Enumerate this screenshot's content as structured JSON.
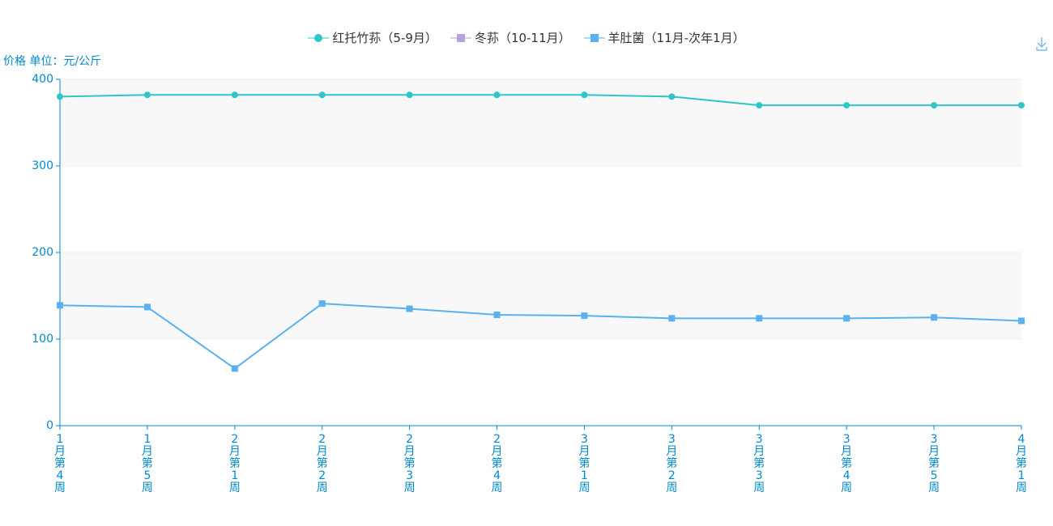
{
  "chart_data": {
    "type": "line",
    "y_axis_name": "价格 单位：元/公斤",
    "categories": [
      "1月第4周",
      "1月第5周",
      "2月第1周",
      "2月第2周",
      "2月第3周",
      "2月第4周",
      "3月第1周",
      "3月第2周",
      "3月第3周",
      "3月第4周",
      "3月第5周",
      "4月第1周"
    ],
    "series": [
      {
        "name": "红托竹荪（5-9月）",
        "color": "#2ec7c9",
        "marker": "circle",
        "values": [
          380,
          382,
          382,
          382,
          382,
          382,
          382,
          380,
          370,
          370,
          370,
          370
        ]
      },
      {
        "name": "冬荪（10-11月）",
        "color": "#b6a2de",
        "marker": "square",
        "values": [
          null,
          null,
          null,
          null,
          null,
          null,
          null,
          null,
          null,
          null,
          null,
          null
        ]
      },
      {
        "name": "羊肚菌（11月-次年1月）",
        "color": "#5ab1ef",
        "marker": "square",
        "values": [
          139,
          137,
          66,
          141,
          135,
          128,
          127,
          124,
          124,
          124,
          125,
          121
        ]
      }
    ],
    "ylim": [
      0,
      400
    ],
    "yticks": [
      0,
      100,
      200,
      300,
      400
    ],
    "grid": true,
    "split_area": true
  }
}
